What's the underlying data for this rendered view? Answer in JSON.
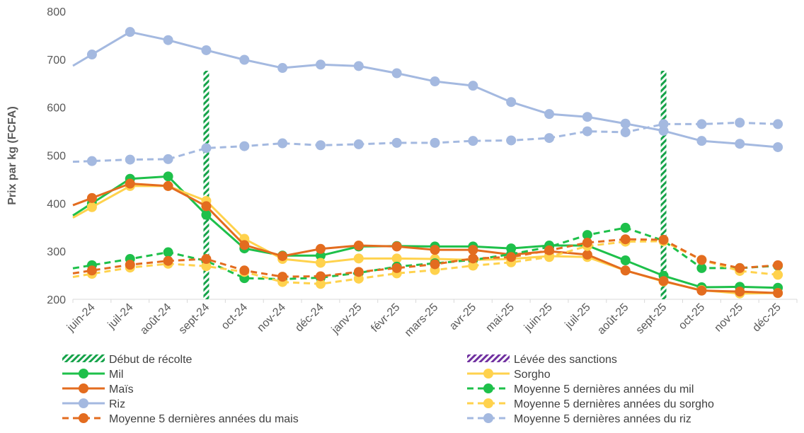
{
  "chart_data": {
    "type": "line",
    "title": "",
    "xlabel": "",
    "ylabel": "Prix par kg (FCFA)",
    "ylim": [
      200,
      800
    ],
    "yticks": [
      200,
      300,
      400,
      500,
      600,
      700,
      800
    ],
    "grid": false,
    "legend_position": "bottom",
    "categories": [
      "juin-24",
      "juil-24",
      "août-24",
      "sept-24",
      "oct-24",
      "nov-24",
      "déc-24",
      "janv-25",
      "févr-25",
      "mars-25",
      "avr-25",
      "mai-25",
      "juin-25",
      "juil-25",
      "août-25",
      "sept-25",
      "oct-25",
      "nov-25",
      "déc-25"
    ],
    "vertical_markers": [
      {
        "name": "Début de récolte",
        "color": "#16a34a",
        "categories": [
          "sept-24",
          "sept-25"
        ]
      },
      {
        "name": "Lévée des sanctions",
        "color": "#7030a0",
        "categories": []
      }
    ],
    "series": [
      {
        "name": "Mil",
        "color": "#1ec04a",
        "dashed": false,
        "values": [
          400,
          451,
          456,
          376,
          306,
          291,
          291,
          310,
          311,
          310,
          310,
          306,
          312,
          312,
          281,
          249,
          225,
          226,
          224
        ]
      },
      {
        "name": "Sorgho",
        "color": "#ffd24d",
        "dashed": false,
        "values": [
          392,
          436,
          436,
          405,
          326,
          284,
          276,
          285,
          285,
          284,
          282,
          284,
          290,
          288,
          260,
          237,
          219,
          212,
          213
        ]
      },
      {
        "name": "Maïs",
        "color": "#e36c1f",
        "dashed": false,
        "values": [
          411,
          441,
          436,
          394,
          313,
          290,
          305,
          312,
          310,
          303,
          303,
          293,
          300,
          293,
          260,
          238,
          218,
          216,
          213
        ]
      },
      {
        "name": "Moyenne 5 dernières années du mil",
        "color": "#1ec04a",
        "dashed": true,
        "values": [
          271,
          284,
          298,
          280,
          244,
          242,
          245,
          255,
          268,
          275,
          282,
          294,
          309,
          334,
          349,
          322,
          265,
          265,
          270
        ]
      },
      {
        "name": "Riz",
        "color": "#a4b9e0",
        "dashed": false,
        "values": [
          710,
          757,
          740,
          719,
          699,
          682,
          689,
          686,
          671,
          654,
          645,
          611,
          586,
          580,
          566,
          551,
          530,
          524,
          517
        ]
      },
      {
        "name": "Moyenne 5 dernières années du sorgho",
        "color": "#ffd24d",
        "dashed": true,
        "values": [
          253,
          266,
          274,
          269,
          257,
          236,
          232,
          243,
          254,
          261,
          270,
          277,
          288,
          311,
          320,
          321,
          282,
          259,
          251
        ]
      },
      {
        "name": "Moyenne 5 dernières années du mais",
        "color": "#e36c1f",
        "dashed": true,
        "values": [
          260,
          272,
          280,
          284,
          260,
          247,
          248,
          257,
          265,
          273,
          285,
          288,
          302,
          318,
          325,
          324,
          282,
          265,
          271
        ]
      },
      {
        "name": "Moyenne 5 dernières années du riz",
        "color": "#a4b9e0",
        "dashed": true,
        "values": [
          488,
          491,
          492,
          515,
          519,
          525,
          521,
          523,
          526,
          526,
          530,
          531,
          536,
          550,
          548,
          565,
          565,
          568,
          565
        ]
      }
    ]
  }
}
